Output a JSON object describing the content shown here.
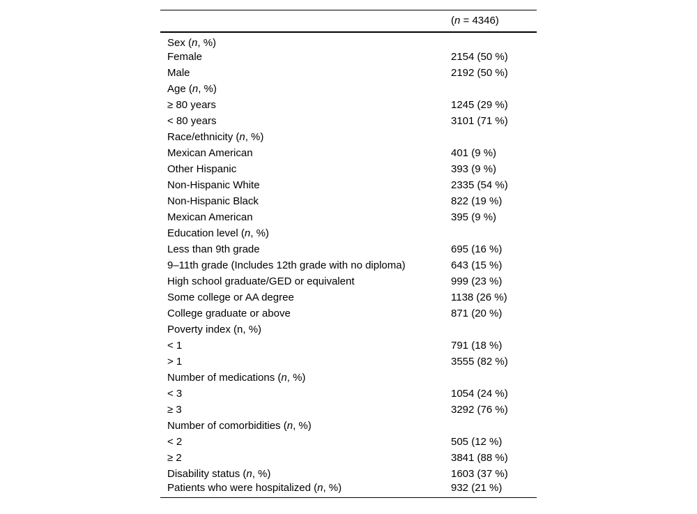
{
  "table": {
    "name": "Baseline characteristics table",
    "header": {
      "label_cell": "",
      "n_cell": {
        "pre": "(",
        "it": "n",
        "post": " = 4346)"
      }
    },
    "rows": [
      {
        "pre": "Sex (",
        "it": "n",
        "post": ", %)",
        "value": ""
      },
      {
        "pre": "Female",
        "it": "",
        "post": "",
        "value": "2154 (50 %)"
      },
      {
        "pre": "Male",
        "it": "",
        "post": "",
        "value": "2192 (50 %)"
      },
      {
        "pre": "Age (",
        "it": "n",
        "post": ", %)",
        "value": ""
      },
      {
        "pre": "≥ 80 years",
        "it": "",
        "post": "",
        "value": "1245 (29 %)"
      },
      {
        "pre": "< 80 years",
        "it": "",
        "post": "",
        "value": "3101 (71 %)"
      },
      {
        "pre": "Race/ethnicity (",
        "it": "n",
        "post": ", %)",
        "value": ""
      },
      {
        "pre": "Mexican American",
        "it": "",
        "post": "",
        "value": "401 (9 %)"
      },
      {
        "pre": "Other Hispanic",
        "it": "",
        "post": "",
        "value": "393 (9 %)"
      },
      {
        "pre": "Non-Hispanic White",
        "it": "",
        "post": "",
        "value": "2335 (54 %)"
      },
      {
        "pre": "Non-Hispanic Black",
        "it": "",
        "post": "",
        "value": "822 (19 %)"
      },
      {
        "pre": "Mexican American",
        "it": "",
        "post": "",
        "value": "395 (9 %)"
      },
      {
        "pre": "Education level (",
        "it": "n",
        "post": ", %)",
        "value": ""
      },
      {
        "pre": "Less than 9th grade",
        "it": "",
        "post": "",
        "value": "695 (16 %)"
      },
      {
        "pre": "9–11th grade (Includes 12th grade with no diploma)",
        "it": "",
        "post": "",
        "value": "643 (15 %)"
      },
      {
        "pre": "High school graduate/GED or equivalent",
        "it": "",
        "post": "",
        "value": "999 (23 %)"
      },
      {
        "pre": "Some college or AA degree",
        "it": "",
        "post": "",
        "value": "1138 (26 %)"
      },
      {
        "pre": "College graduate or above",
        "it": "",
        "post": "",
        "value": "871 (20 %)"
      },
      {
        "pre": "Poverty index (n, %)",
        "it": "",
        "post": "",
        "value": ""
      },
      {
        "pre": "< 1",
        "it": "",
        "post": "",
        "value": "791 (18 %)"
      },
      {
        "pre": "> 1",
        "it": "",
        "post": "",
        "value": "3555 (82 %)"
      },
      {
        "pre": "Number of medications (",
        "it": "n",
        "post": ", %)",
        "value": ""
      },
      {
        "pre": "< 3",
        "it": "",
        "post": "",
        "value": "1054 (24 %)"
      },
      {
        "pre": "≥ 3",
        "it": "",
        "post": "",
        "value": "3292 (76 %)"
      },
      {
        "pre": "Number of comorbidities (",
        "it": "n",
        "post": ", %)",
        "value": ""
      },
      {
        "pre": "< 2",
        "it": "",
        "post": "",
        "value": "505 (12 %)"
      },
      {
        "pre": "≥ 2",
        "it": "",
        "post": "",
        "value": "3841 (88 %)"
      },
      {
        "pre": "Disability status (",
        "it": "n",
        "post": ", %)",
        "value": "1603 (37 %)"
      },
      {
        "pre": "Patients who were hospitalized (",
        "it": "n",
        "post": ", %)",
        "value": "932 (21 %)"
      }
    ]
  }
}
